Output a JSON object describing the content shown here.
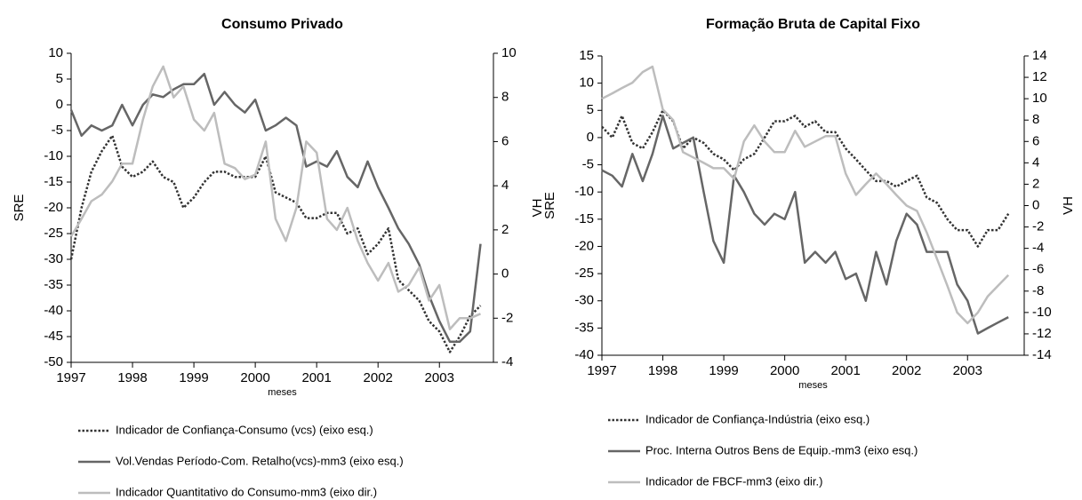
{
  "chart_data": [
    {
      "type": "line",
      "title": "Consumo Privado",
      "xlabel": "meses",
      "ylabel": "SRE",
      "y2label": "VH",
      "x": [
        1997,
        1997.17,
        1997.33,
        1997.5,
        1997.67,
        1997.83,
        1998,
        1998.17,
        1998.33,
        1998.5,
        1998.67,
        1998.83,
        1999,
        1999.17,
        1999.33,
        1999.5,
        1999.67,
        1999.83,
        2000,
        2000.17,
        2000.33,
        2000.5,
        2000.67,
        2000.83,
        2001,
        2001.17,
        2001.33,
        2001.5,
        2001.67,
        2001.83,
        2002,
        2002.17,
        2002.33,
        2002.5,
        2002.67,
        2002.83,
        2003,
        2003.17,
        2003.33,
        2003.5,
        2003.67
      ],
      "xlim": [
        1997,
        2003.88
      ],
      "xticks": [
        1997,
        1998,
        1999,
        2000,
        2001,
        2002,
        2003
      ],
      "ylim": [
        -50,
        10
      ],
      "yticks": [
        10,
        5,
        0,
        -5,
        -10,
        -15,
        -20,
        -25,
        -30,
        -35,
        -40,
        -45,
        -50
      ],
      "y2lim": [
        -4,
        10
      ],
      "y2ticks": [
        10,
        8,
        6,
        4,
        2,
        0,
        -2,
        -4
      ],
      "series": [
        {
          "name": "Indicador de Confiança-Consumo (vcs) (eixo esq.)",
          "color": "#333333",
          "line_style": "dotted",
          "values": [
            -30,
            -20,
            -13,
            -9,
            -6,
            -12,
            -14,
            -13,
            -11,
            -14,
            -15,
            -20,
            -18,
            -15,
            -13,
            -13,
            -14,
            -14,
            -14,
            -10,
            -17,
            -18,
            -19,
            -22,
            -22,
            -21,
            -21,
            -25,
            -24,
            -29,
            -27,
            -24,
            -34,
            -36,
            -38,
            -42,
            -44,
            -48,
            -45,
            -41,
            -39
          ]
        },
        {
          "name": "Vol.Vendas Período-Com. Retalho(vcs)-mm3 (eixo esq.)",
          "color": "#666666",
          "line_style": "solid",
          "values": [
            -1,
            -6,
            -4,
            -5,
            -4,
            0,
            -4,
            0,
            2,
            1.5,
            3,
            4,
            4,
            6,
            0,
            2.5,
            0,
            -1.5,
            1,
            -5,
            -4,
            -2.5,
            -4,
            -12,
            -11,
            -12,
            -9,
            -14,
            -16,
            -11,
            -16,
            -20,
            -24,
            -27,
            -31,
            -37,
            -42,
            -46,
            -46,
            -44,
            -27
          ]
        },
        {
          "name": "Indicador Quantitativo do Consumo-mm3 (eixo dir.)",
          "color": "#bdbdbd",
          "line_style": "solid",
          "axis": "y2",
          "values": [
            1.7,
            2.5,
            3.3,
            3.6,
            4.2,
            5,
            5,
            7,
            8.5,
            9.4,
            8,
            8.5,
            7,
            6.5,
            7.3,
            5,
            4.8,
            4.3,
            4.5,
            6,
            2.5,
            1.5,
            3,
            6,
            5.5,
            2.5,
            2,
            3,
            1.5,
            0.5,
            -0.3,
            0.5,
            -0.8,
            -0.5,
            0.3,
            -1.2,
            -0.5,
            -2.5,
            -2,
            -2,
            -1.8
          ]
        }
      ]
    },
    {
      "type": "line",
      "title": "Formação Bruta de Capital Fixo",
      "xlabel": "meses",
      "ylabel": "SRE",
      "y2label": "VH",
      "x": [
        1997,
        1997.17,
        1997.33,
        1997.5,
        1997.67,
        1997.83,
        1998,
        1998.17,
        1998.33,
        1998.5,
        1998.67,
        1998.83,
        1999,
        1999.17,
        1999.33,
        1999.5,
        1999.67,
        1999.83,
        2000,
        2000.17,
        2000.33,
        2000.5,
        2000.67,
        2000.83,
        2001,
        2001.17,
        2001.33,
        2001.5,
        2001.67,
        2001.83,
        2002,
        2002.17,
        2002.33,
        2002.5,
        2002.67,
        2002.83,
        2003,
        2003.17,
        2003.33,
        2003.5,
        2003.67
      ],
      "xlim": [
        1997,
        2003.93
      ],
      "xticks": [
        1997,
        1998,
        1999,
        2000,
        2001,
        2002,
        2003
      ],
      "ylim": [
        -40,
        15
      ],
      "yticks": [
        15,
        10,
        5,
        0,
        -5,
        -10,
        -15,
        -20,
        -25,
        -30,
        -35,
        -40
      ],
      "y2lim": [
        -14,
        14
      ],
      "y2ticks": [
        14,
        12,
        10,
        8,
        6,
        4,
        2,
        0,
        -2,
        -4,
        -6,
        -8,
        -10,
        -12,
        -14
      ],
      "series": [
        {
          "name": "Indicador de Confiança-Indústria (eixo esq.)",
          "color": "#333333",
          "line_style": "dotted",
          "values": [
            2,
            0,
            4,
            -1,
            -2,
            1,
            5,
            3,
            -2,
            0,
            -1,
            -3,
            -4,
            -6,
            -4,
            -3,
            0,
            3,
            3,
            4,
            2,
            3,
            1,
            1,
            -2,
            -4,
            -6,
            -8,
            -8,
            -9,
            -8,
            -7,
            -11,
            -12,
            -15,
            -17,
            -17,
            -20,
            -17,
            -17,
            -14
          ]
        },
        {
          "name": "Proc. Interna Outros Bens de Equip.-mm3 (eixo esq.)",
          "color": "#666666",
          "line_style": "solid",
          "values": [
            -6,
            -7,
            -9,
            -3,
            -8,
            -3,
            4,
            -2,
            -1,
            0,
            -10,
            -19,
            -23,
            -7,
            -10,
            -14,
            -16,
            -14,
            -15,
            -10,
            -23,
            -21,
            -23,
            -21,
            -26,
            -25,
            -30,
            -21,
            -27,
            -19,
            -14,
            -16,
            -21,
            -21,
            -21,
            -27,
            -30,
            -36,
            -35,
            -34,
            -33
          ]
        },
        {
          "name": "Indicador de FBCF-mm3 (eixo dir.)",
          "color": "#bdbdbd",
          "line_style": "solid",
          "axis": "y2",
          "values": [
            10,
            10.5,
            11,
            11.5,
            12.5,
            13,
            9,
            8,
            5,
            4.5,
            4,
            3.5,
            3.5,
            2.5,
            6,
            7.5,
            6,
            5,
            5,
            7,
            5.5,
            6,
            6.5,
            6.5,
            3,
            1,
            2,
            3,
            2,
            1,
            0,
            -0.5,
            -2.5,
            -5,
            -7.5,
            -10,
            -11,
            -10,
            -8.5,
            -7.5,
            -6.5
          ]
        }
      ]
    }
  ]
}
